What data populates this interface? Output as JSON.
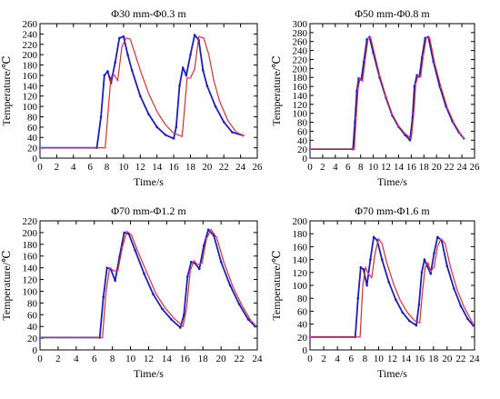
{
  "figure": {
    "series_colors": {
      "series_a": "#1f1fb4",
      "series_b": "#c0392b"
    },
    "marker_color": "#ff3cff"
  },
  "chart_data": [
    {
      "type": "line",
      "title": "Φ30 mm-Φ0.3 m",
      "xlabel": "Time/s",
      "ylabel": "Temperature/℃",
      "xlim": [
        0,
        26
      ],
      "ylim": [
        0,
        260
      ],
      "xticks": [
        0,
        2,
        4,
        6,
        8,
        10,
        12,
        14,
        16,
        18,
        20,
        22,
        24,
        26
      ],
      "yticks": [
        0,
        20,
        40,
        60,
        80,
        100,
        120,
        140,
        160,
        180,
        200,
        220,
        240,
        260
      ],
      "grid": false,
      "series": [
        {
          "x": [
            0,
            6.8,
            7.3,
            7.7,
            8.1,
            8.5,
            9.0,
            9.5,
            10.0,
            10.5,
            11,
            12,
            13,
            14,
            15,
            16,
            16.3,
            16.7,
            17.1,
            17.5,
            18.0,
            18.5,
            19.0,
            19.5,
            20,
            21,
            22,
            23,
            24.3
          ],
          "y": [
            20,
            20,
            80,
            160,
            168,
            145,
            185,
            232,
            235,
            200,
            170,
            120,
            85,
            60,
            45,
            38,
            60,
            140,
            175,
            160,
            200,
            238,
            228,
            170,
            140,
            100,
            70,
            50,
            44
          ]
        },
        {
          "x": [
            0,
            7.8,
            8.2,
            8.5,
            8.9,
            9.3,
            9.8,
            10.3,
            10.8,
            11.3,
            12,
            13,
            14,
            15,
            16,
            17,
            17.3,
            17.6,
            18.0,
            18.5,
            19.0,
            19.6,
            20.2,
            20.8,
            21.5,
            22.5,
            23.5,
            24.3
          ],
          "y": [
            20,
            20,
            100,
            158,
            160,
            150,
            215,
            232,
            230,
            205,
            170,
            125,
            90,
            65,
            48,
            42,
            95,
            155,
            155,
            172,
            235,
            232,
            200,
            150,
            110,
            72,
            50,
            44
          ]
        }
      ]
    },
    {
      "type": "line",
      "title": "Φ50 mm-Φ0.8 m",
      "xlabel": "Time/s",
      "ylabel": "Temperature/℃",
      "xlim": [
        0,
        26
      ],
      "ylim": [
        0,
        300
      ],
      "xticks": [
        0,
        2,
        4,
        6,
        8,
        10,
        12,
        14,
        16,
        18,
        20,
        22,
        24,
        26
      ],
      "yticks": [
        0,
        20,
        40,
        60,
        80,
        100,
        120,
        140,
        160,
        180,
        200,
        220,
        240,
        260,
        280,
        300
      ],
      "grid": false,
      "series": [
        {
          "x": [
            0,
            6.8,
            7.1,
            7.4,
            7.7,
            8.1,
            8.5,
            9.0,
            9.4,
            10,
            11,
            12,
            13,
            14,
            15,
            15.8,
            16.2,
            16.5,
            16.9,
            17.3,
            17.7,
            18.2,
            18.7,
            19.5,
            20.5,
            21.5,
            22.5,
            23.5,
            24.3
          ],
          "y": [
            20,
            20,
            80,
            150,
            178,
            175,
            215,
            265,
            270,
            235,
            180,
            135,
            95,
            70,
            52,
            40,
            90,
            160,
            185,
            182,
            225,
            268,
            270,
            215,
            160,
            115,
            82,
            58,
            44
          ]
        },
        {
          "x": [
            0,
            7.0,
            7.3,
            7.6,
            7.9,
            8.3,
            8.7,
            9.2,
            9.6,
            10.2,
            11,
            12,
            13,
            14,
            15,
            16.0,
            16.4,
            16.7,
            17.1,
            17.5,
            17.9,
            18.4,
            18.9,
            19.7,
            20.7,
            21.7,
            22.7,
            23.7,
            24.3
          ],
          "y": [
            20,
            20,
            90,
            155,
            178,
            172,
            218,
            268,
            268,
            232,
            185,
            138,
            98,
            72,
            55,
            44,
            100,
            165,
            185,
            182,
            228,
            270,
            268,
            212,
            158,
            112,
            80,
            56,
            45
          ]
        }
      ]
    },
    {
      "type": "line",
      "title": "Φ70 mm-Φ1.2 m",
      "xlabel": "Time/s",
      "ylabel": "Temperature/℃",
      "xlim": [
        0,
        24
      ],
      "ylim": [
        0,
        220
      ],
      "xticks": [
        0,
        2,
        4,
        6,
        8,
        10,
        12,
        14,
        16,
        18,
        20,
        22,
        24
      ],
      "yticks": [
        0,
        20,
        40,
        60,
        80,
        100,
        120,
        140,
        160,
        180,
        200,
        220
      ],
      "grid": false,
      "series": [
        {
          "x": [
            0,
            6.6,
            7.0,
            7.4,
            7.8,
            8.3,
            8.8,
            9.3,
            9.8,
            10.5,
            11.5,
            12.5,
            13.5,
            14.5,
            15.5,
            15.9,
            16.3,
            16.7,
            17.1,
            17.6,
            18.1,
            18.6,
            19.2,
            20,
            21,
            22,
            23,
            23.8
          ],
          "y": [
            21,
            21,
            90,
            140,
            138,
            118,
            160,
            200,
            198,
            170,
            130,
            95,
            70,
            52,
            38,
            60,
            125,
            150,
            148,
            138,
            178,
            205,
            195,
            150,
            110,
            78,
            52,
            40
          ]
        },
        {
          "x": [
            0,
            6.9,
            7.3,
            7.7,
            8.1,
            8.6,
            9.1,
            9.6,
            10.1,
            10.8,
            11.8,
            12.8,
            13.8,
            14.8,
            15.8,
            16.2,
            16.6,
            17.0,
            17.4,
            17.9,
            18.4,
            18.9,
            19.5,
            20.3,
            21.3,
            22.3,
            23.3,
            23.8
          ],
          "y": [
            21,
            21,
            100,
            140,
            135,
            135,
            175,
            202,
            196,
            168,
            132,
            96,
            72,
            54,
            40,
            72,
            135,
            152,
            145,
            148,
            190,
            205,
            192,
            150,
            108,
            76,
            50,
            42
          ]
        }
      ]
    },
    {
      "type": "line",
      "title": "Φ70 mm-Φ1.6 m",
      "xlabel": "Time/s",
      "ylabel": "Temperature/℃",
      "xlim": [
        0,
        24
      ],
      "ylim": [
        0,
        200
      ],
      "xticks": [
        0,
        2,
        4,
        6,
        8,
        10,
        12,
        14,
        16,
        18,
        20,
        22,
        24
      ],
      "yticks": [
        0,
        20,
        40,
        60,
        80,
        100,
        120,
        140,
        160,
        180,
        200
      ],
      "grid": false,
      "series": [
        {
          "x": [
            0,
            6.6,
            7.0,
            7.4,
            7.8,
            8.3,
            8.8,
            9.3,
            9.8,
            10.5,
            11.5,
            12.5,
            13.5,
            14.5,
            15.5,
            15.9,
            16.3,
            16.7,
            17.1,
            17.6,
            18.1,
            18.6,
            19.2,
            20,
            21,
            22,
            23,
            23.8
          ],
          "y": [
            20,
            20,
            80,
            128,
            125,
            100,
            140,
            175,
            170,
            140,
            105,
            78,
            58,
            45,
            38,
            70,
            120,
            140,
            130,
            118,
            150,
            175,
            170,
            130,
            95,
            68,
            48,
            38
          ]
        },
        {
          "x": [
            0,
            7.3,
            7.7,
            8.1,
            8.5,
            9.0,
            9.5,
            10.0,
            10.5,
            11.2,
            12.2,
            13.2,
            14.2,
            15.2,
            16.0,
            16.4,
            16.8,
            17.2,
            17.6,
            18.1,
            18.6,
            19.1,
            19.7,
            20.5,
            21.5,
            22.5,
            23.5,
            23.8
          ],
          "y": [
            20,
            20,
            100,
            128,
            118,
            112,
            150,
            172,
            165,
            135,
            102,
            76,
            58,
            46,
            42,
            90,
            128,
            135,
            122,
            128,
            160,
            172,
            165,
            128,
            92,
            66,
            46,
            40
          ]
        }
      ]
    }
  ]
}
